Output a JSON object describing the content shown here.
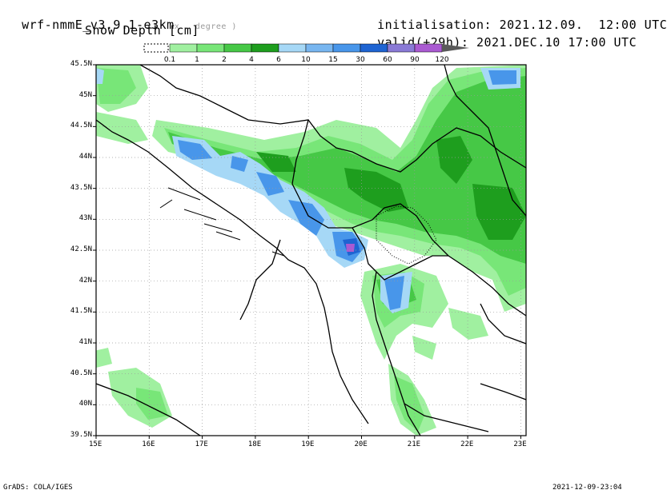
{
  "header": {
    "model": "wrf-nmmE_v3.9.1-e3km",
    "model_sub": "x . degree )",
    "field": "Snow Depth [cm]",
    "init_label": "initialisation:",
    "init_value": "2021.12.09.  12:00 UTC",
    "valid_label": "valid(+29h):",
    "valid_value": "2021.DEC.10 17:00 UTC"
  },
  "legend": {
    "thresholds": [
      "0.1",
      "1",
      "2",
      "4",
      "6",
      "10",
      "15",
      "30",
      "60",
      "90",
      "120"
    ],
    "colors": [
      "#a0f0a0",
      "#78e678",
      "#46c846",
      "#1e9e1e",
      "#a6d8f6",
      "#78b6f0",
      "#4896ea",
      "#1e64d2",
      "#8a7ad6",
      "#aa5ad2",
      "#5a5a5a"
    ]
  },
  "map": {
    "lat_labels": [
      "45.5N",
      "45N",
      "44.5N",
      "44N",
      "43.5N",
      "43N",
      "42.5N",
      "42N",
      "41.5N",
      "41N",
      "40.5N",
      "40N",
      "39.5N"
    ],
    "lon_labels": [
      "15E",
      "16E",
      "17E",
      "18E",
      "19E",
      "20E",
      "21E",
      "22E",
      "23E"
    ]
  },
  "footer": {
    "left": "GrADS: COLA/IGES",
    "right": "2021-12-09-23:04"
  }
}
